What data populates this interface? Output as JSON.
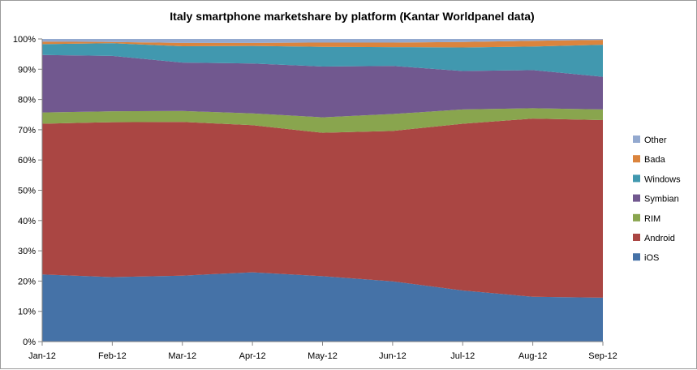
{
  "chart_data": {
    "type": "area",
    "stacked": true,
    "title": "Italy smartphone marketshare by platform (Kantar Worldpanel data)",
    "xlabel": "",
    "ylabel": "",
    "ylim": [
      0,
      100
    ],
    "y_ticks": [
      "0%",
      "10%",
      "20%",
      "30%",
      "40%",
      "50%",
      "60%",
      "70%",
      "80%",
      "90%",
      "100%"
    ],
    "grid": false,
    "legend_position": "right",
    "categories": [
      "Jan-12",
      "Feb-12",
      "Mar-12",
      "Apr-12",
      "May-12",
      "Jun-12",
      "Jul-12",
      "Aug-12",
      "Sep-12"
    ],
    "series": [
      {
        "name": "iOS",
        "color": "#4572A7",
        "values": [
          22.2,
          21.3,
          21.8,
          22.9,
          21.6,
          19.9,
          16.9,
          14.8,
          14.5
        ]
      },
      {
        "name": "Android",
        "color": "#AA4643",
        "values": [
          49.8,
          51.2,
          50.8,
          48.6,
          47.4,
          49.7,
          55.1,
          58.9,
          58.7
        ]
      },
      {
        "name": "RIM",
        "color": "#89A54E",
        "values": [
          3.7,
          3.6,
          3.6,
          3.9,
          5.1,
          5.6,
          4.7,
          3.4,
          3.5
        ]
      },
      {
        "name": "Symbian",
        "color": "#71588F",
        "values": [
          19.0,
          18.3,
          16.0,
          16.5,
          16.8,
          15.9,
          12.7,
          12.6,
          10.8
        ]
      },
      {
        "name": "Windows",
        "color": "#4198AF",
        "values": [
          3.6,
          4.2,
          5.4,
          5.8,
          6.5,
          6.2,
          7.8,
          7.8,
          10.6
        ]
      },
      {
        "name": "Bada",
        "color": "#DB843D",
        "values": [
          0.8,
          0.4,
          1.1,
          1.0,
          1.4,
          1.5,
          1.8,
          1.9,
          1.6
        ]
      },
      {
        "name": "Other",
        "color": "#93A9CF",
        "values": [
          0.9,
          1.0,
          1.3,
          1.3,
          1.2,
          1.2,
          1.0,
          0.6,
          0.3
        ]
      }
    ]
  }
}
